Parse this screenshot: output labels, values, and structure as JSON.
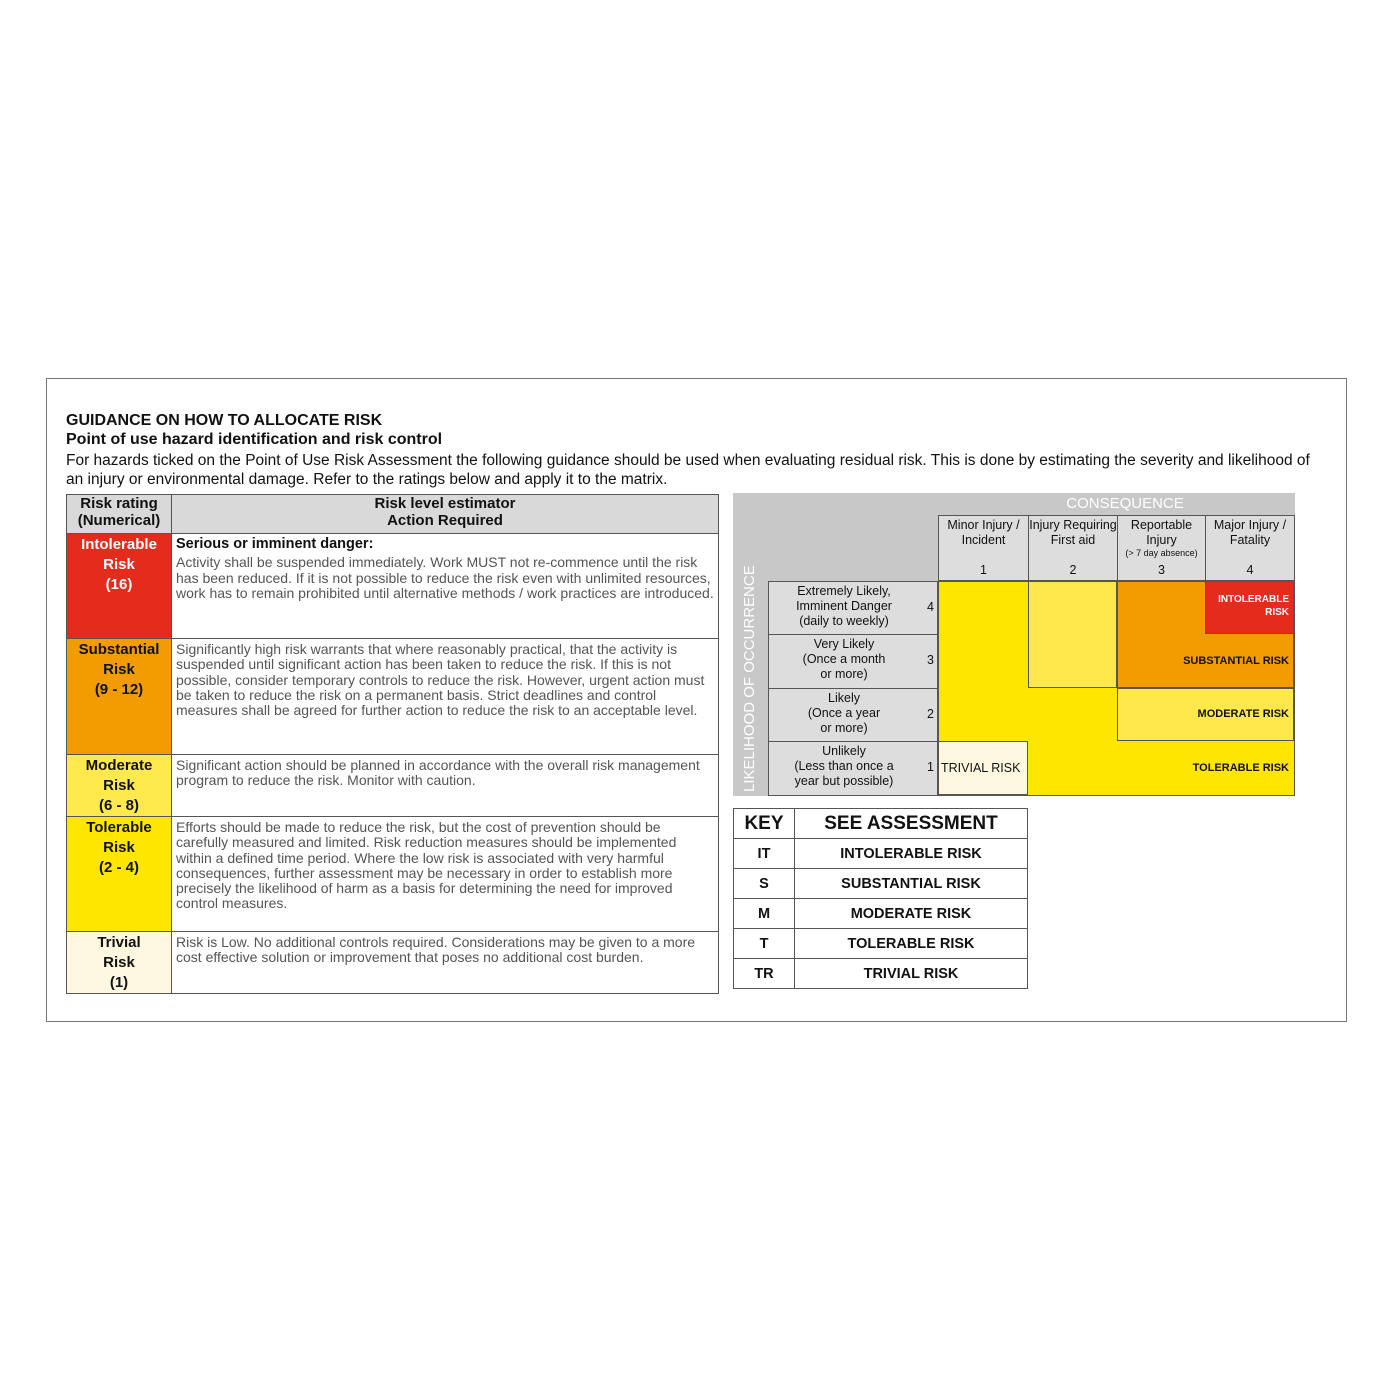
{
  "heading": "GUIDANCE ON HOW TO ALLOCATE RISK",
  "subheading": "Point of use hazard identification and risk control",
  "intro": "For hazards ticked on the Point of Use Risk Assessment the following guidance should be used when evaluating residual risk. This is done by estimating the severity and likelihood of an injury or environmental damage. Refer to the ratings below and apply it to the matrix.",
  "guidance_table": {
    "headers": [
      "Risk rating\n(Numerical)",
      "Risk level estimator\nAction Required"
    ],
    "rows": [
      {
        "name": "Intolerable",
        "word": "Risk",
        "range": "(16)",
        "color": "#e42b1c",
        "text_color": "#ffffff",
        "lead": "Serious or imminent danger:",
        "text": "Activity shall be suspended immediately. Work MUST not re-commence until the risk has been reduced. If it is not possible to reduce the risk even with unlimited resources, work has to remain prohibited until alternative methods / work practices are introduced."
      },
      {
        "name": "Substantial",
        "word": "Risk",
        "range": "(9 - 12)",
        "color": "#f29c00",
        "text_color": "#111111",
        "lead": "",
        "text": "Significantly high risk warrants that where reasonably practical, that the activity is suspended until significant action has been taken to reduce the risk. If this is not possible, consider temporary controls to reduce the risk. However, urgent action must be taken to reduce the risk on a permanent basis. Strict deadlines and control measures shall be agreed for further action to reduce the risk to an acceptable level."
      },
      {
        "name": "Moderate",
        "word": "Risk",
        "range": "(6 - 8)",
        "color": "#ffe94d",
        "text_color": "#111111",
        "lead": "",
        "text": "Significant action should be planned in accordance with the overall risk management program to reduce the risk. Monitor with caution."
      },
      {
        "name": "Tolerable",
        "word": "Risk",
        "range": "(2 - 4)",
        "color": "#ffe600",
        "text_color": "#111111",
        "lead": "",
        "text": "Efforts should be made to reduce the risk, but the cost of prevention should be carefully measured and limited. Risk reduction measures should be implemented within a defined time period. Where the low risk is associated with very harmful consequences, further assessment may be necessary in order to establish more precisely the likelihood of harm as a basis for determining the need for improved control measures."
      },
      {
        "name": "Trivial",
        "word": "Risk",
        "range": "(1)",
        "color": "#fff8e1",
        "text_color": "#111111",
        "lead": "",
        "text": "Risk is Low. No additional controls required. Considerations may be given to a more cost effective solution or improvement that poses no additional cost burden."
      }
    ]
  },
  "matrix": {
    "consequence_label": "CONSEQUENCE",
    "likelihood_label": "LIKELIHOOD OF OCCURRENCE",
    "columns": [
      {
        "title": "Minor Injury / Incident",
        "note": "",
        "num": "1"
      },
      {
        "title": "Injury Requiring First aid",
        "note": "",
        "num": "2"
      },
      {
        "title": "Reportable Injury",
        "note": "(> 7 day absence)",
        "num": "3"
      },
      {
        "title": "Major Injury / Fatality",
        "note": "",
        "num": "4"
      }
    ],
    "rows": [
      {
        "title": "Extremely Likely,",
        "sub1": "Imminent Danger",
        "sub2": "(daily to weekly)",
        "num": "4"
      },
      {
        "title": "Very Likely",
        "sub1": "(Once a month",
        "sub2": "or more)",
        "num": "3"
      },
      {
        "title": "Likely",
        "sub1": "(Once a year",
        "sub2": "or more)",
        "num": "2"
      },
      {
        "title": "Unlikely",
        "sub1": "(Less than once a",
        "sub2": "year but possible)",
        "num": "1"
      }
    ],
    "cell_colors": [
      [
        "#ffe600",
        "#ffe84a",
        "#f29c00",
        "#e42b1c"
      ],
      [
        "#ffe600",
        "#ffe84a",
        "#f29c00",
        "#f29c00"
      ],
      [
        "#ffe600",
        "#ffe600",
        "#ffe84a",
        "#ffe84a"
      ],
      [
        "#fff8e1",
        "#ffe600",
        "#ffe600",
        "#ffe600"
      ]
    ],
    "labels": {
      "intolerable": "INTOLERABLE RISK",
      "substantial": "SUBSTANTIAL RISK",
      "moderate": "MODERATE RISK",
      "tolerable": "TOLERABLE RISK",
      "trivial": "TRIVIAL RISK"
    }
  },
  "key": {
    "headers": [
      "KEY",
      "SEE ASSESSMENT"
    ],
    "rows": [
      {
        "code": "IT",
        "meaning": "INTOLERABLE RISK"
      },
      {
        "code": "S",
        "meaning": "SUBSTANTIAL RISK"
      },
      {
        "code": "M",
        "meaning": "MODERATE RISK"
      },
      {
        "code": "T",
        "meaning": "TOLERABLE RISK"
      },
      {
        "code": "TR",
        "meaning": "TRIVIAL RISK"
      }
    ]
  }
}
